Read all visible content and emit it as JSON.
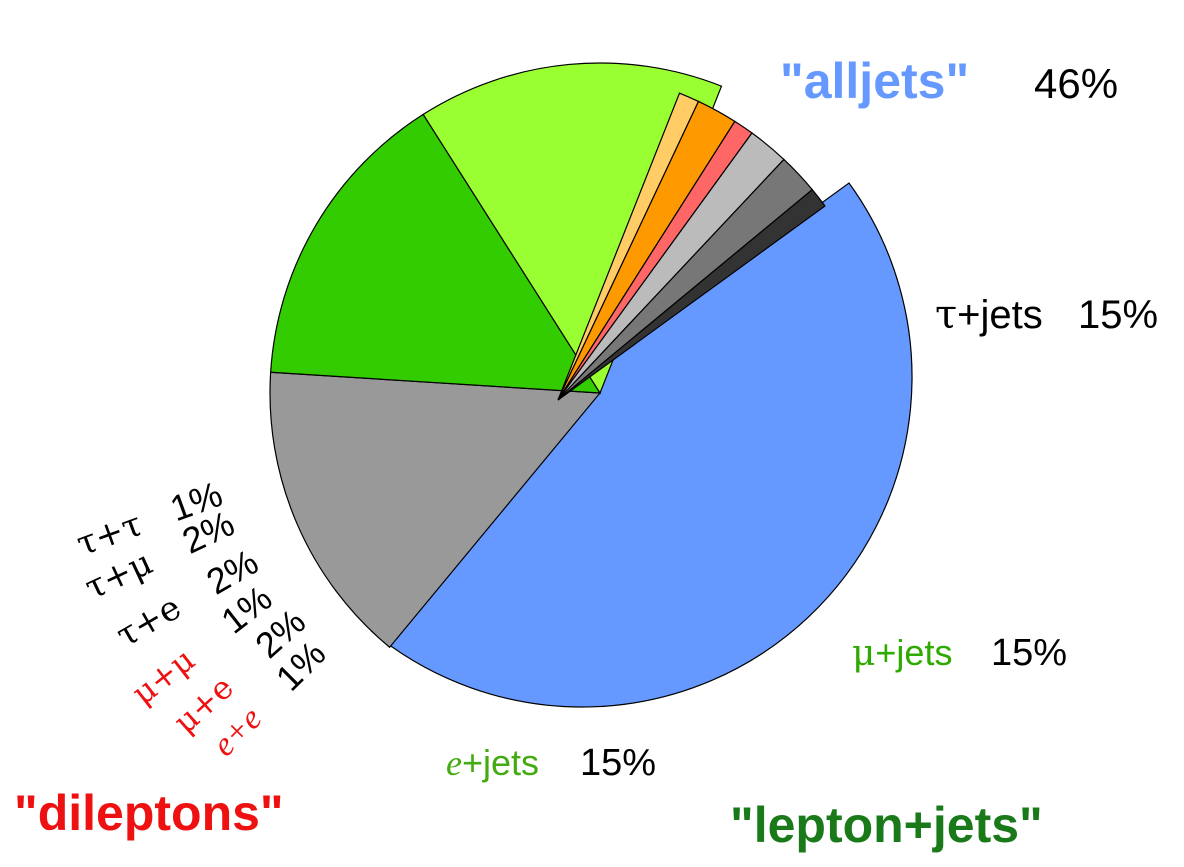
{
  "chart_data": {
    "type": "pie",
    "title": "",
    "slices": [
      {
        "label": "\"alljets\"",
        "value": 46,
        "pct": "46%",
        "color": "#6699ff"
      },
      {
        "label": "τ+jets",
        "value": 15,
        "pct": "15%",
        "color": "#999999"
      },
      {
        "label": "μ+jets",
        "value": 15,
        "pct": "15%",
        "color": "#33cc00"
      },
      {
        "label": "e+jets",
        "value": 15,
        "pct": "15%",
        "color": "#99ff33"
      },
      {
        "label": "e+e",
        "value": 1,
        "pct": "1%",
        "color": "#ffcc66"
      },
      {
        "label": "μ+e",
        "value": 2,
        "pct": "2%",
        "color": "#ff9900"
      },
      {
        "label": "μ+μ",
        "value": 1,
        "pct": "1%",
        "color": "#ff6666"
      },
      {
        "label": "τ+e",
        "value": 2,
        "pct": "2%",
        "color": "#bbbbbb"
      },
      {
        "label": "τ+μ",
        "value": 2,
        "pct": "2%",
        "color": "#777777"
      },
      {
        "label": "τ+τ",
        "value": 1,
        "pct": "1%",
        "color": "#333333"
      }
    ],
    "groups": [
      {
        "name": "\"alljets\"",
        "color": "#6699ff"
      },
      {
        "name": "\"lepton+jets\"",
        "color": "#1a7a1a"
      },
      {
        "name": "\"dileptons\"",
        "color": "#ee1111"
      }
    ]
  },
  "labels": {
    "alljets": {
      "name": "\"alljets\"",
      "pct": "46%"
    },
    "taujets": {
      "greek": "τ",
      "rest": "+jets",
      "pct": "15%"
    },
    "mujets": {
      "greek": "μ",
      "rest": "+jets",
      "pct": "15%"
    },
    "ejets": {
      "ital": "e",
      "rest": "+jets",
      "pct": "15%"
    },
    "lepjets": "\"lepton+jets\"",
    "dileptons": "\"dileptons\"",
    "dilep": [
      {
        "name": "τ+τ",
        "pct": "1%"
      },
      {
        "name": "τ+μ",
        "pct": "2%"
      },
      {
        "name": "τ+e",
        "pct": "2%"
      },
      {
        "name": "μ+μ",
        "pct": "1%"
      },
      {
        "name": "μ+e",
        "pct": "2%"
      },
      {
        "name": "e+e",
        "pct": "1%"
      }
    ]
  }
}
